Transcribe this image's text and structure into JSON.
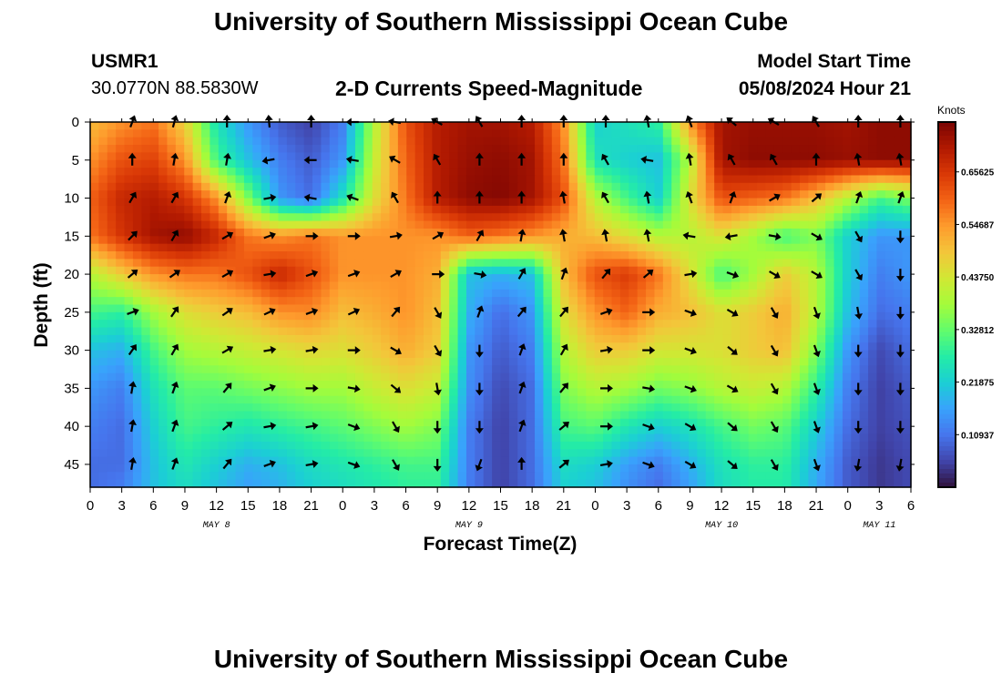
{
  "header": {
    "title": "University of Southern Mississippi Ocean Cube",
    "station": "USMR1",
    "coords": "30.0770N  88.5830W",
    "subtitle": "2-D Currents Speed-Magnitude",
    "model_label": "Model Start Time",
    "model_time": "05/08/2024 Hour 21"
  },
  "footer": {
    "title": "University of Southern Mississippi Ocean Cube"
  },
  "chart_data": {
    "type": "heatmap",
    "title": "2-D Currents Speed-Magnitude",
    "xlabel": "Forecast Time(Z)",
    "ylabel": "Depth (ft)",
    "x_ticks": [
      "0",
      "3",
      "6",
      "9",
      "12",
      "15",
      "18",
      "21",
      "0",
      "3",
      "6",
      "9",
      "12",
      "15",
      "18",
      "21",
      "0",
      "3",
      "6",
      "9",
      "12",
      "15",
      "18",
      "21",
      "0",
      "3",
      "6"
    ],
    "x_range_hours": [
      0,
      78
    ],
    "day_labels": [
      {
        "label": "MAY 8",
        "hour": 12
      },
      {
        "label": "MAY 9",
        "hour": 36
      },
      {
        "label": "MAY 10",
        "hour": 60
      },
      {
        "label": "MAY 11",
        "hour": 75
      }
    ],
    "y_ticks": [
      "0",
      "5",
      "10",
      "15",
      "20",
      "25",
      "30",
      "35",
      "40",
      "45"
    ],
    "y_range_ft": [
      0,
      48
    ],
    "colorbar": {
      "label": "Knots",
      "ticks": [
        "0.65625",
        "0.54687",
        "0.43750",
        "0.32812",
        "0.21875",
        "0.10937"
      ],
      "range": [
        0.0,
        0.76
      ],
      "colors": [
        "#30123b",
        "#4145ab",
        "#4675ed",
        "#39a2fc",
        "#1bcfd4",
        "#24eca6",
        "#61fc6c",
        "#a4fc3b",
        "#d1e834",
        "#f3c63a",
        "#fe9b2d",
        "#f36315",
        "#d93806",
        "#b11901",
        "#7a0403"
      ]
    },
    "speed_grid": {
      "units": "knots",
      "x_hours": [
        0,
        3,
        6,
        9,
        12,
        15,
        18,
        21,
        24,
        27,
        30,
        33,
        36,
        39,
        42,
        45,
        48,
        51,
        54,
        57,
        60,
        63,
        66,
        69,
        72,
        75,
        78
      ],
      "depths_ft": [
        0,
        5,
        10,
        15,
        20,
        25,
        30,
        35,
        40,
        45,
        48
      ],
      "values": [
        [
          0.5,
          0.55,
          0.58,
          0.47,
          0.25,
          0.15,
          0.08,
          0.05,
          0.12,
          0.4,
          0.62,
          0.7,
          0.72,
          0.72,
          0.7,
          0.55,
          0.22,
          0.25,
          0.28,
          0.55,
          0.72,
          0.73,
          0.73,
          0.73,
          0.72,
          0.74,
          0.74
        ],
        [
          0.55,
          0.62,
          0.64,
          0.55,
          0.3,
          0.2,
          0.12,
          0.08,
          0.15,
          0.42,
          0.6,
          0.7,
          0.73,
          0.74,
          0.72,
          0.58,
          0.25,
          0.22,
          0.2,
          0.4,
          0.72,
          0.74,
          0.74,
          0.74,
          0.73,
          0.74,
          0.74
        ],
        [
          0.6,
          0.68,
          0.7,
          0.66,
          0.55,
          0.35,
          0.15,
          0.1,
          0.25,
          0.45,
          0.58,
          0.7,
          0.74,
          0.75,
          0.72,
          0.62,
          0.4,
          0.3,
          0.22,
          0.45,
          0.62,
          0.6,
          0.58,
          0.5,
          0.4,
          0.3,
          0.35
        ],
        [
          0.58,
          0.66,
          0.72,
          0.74,
          0.68,
          0.58,
          0.55,
          0.58,
          0.55,
          0.55,
          0.55,
          0.55,
          0.6,
          0.58,
          0.55,
          0.52,
          0.5,
          0.45,
          0.4,
          0.4,
          0.45,
          0.38,
          0.3,
          0.35,
          0.22,
          0.15,
          0.15
        ],
        [
          0.4,
          0.48,
          0.55,
          0.58,
          0.58,
          0.62,
          0.68,
          0.62,
          0.55,
          0.55,
          0.55,
          0.52,
          0.2,
          0.18,
          0.2,
          0.5,
          0.62,
          0.65,
          0.58,
          0.45,
          0.3,
          0.38,
          0.48,
          0.4,
          0.22,
          0.12,
          0.15
        ],
        [
          0.3,
          0.28,
          0.38,
          0.45,
          0.48,
          0.5,
          0.55,
          0.56,
          0.5,
          0.52,
          0.55,
          0.5,
          0.18,
          0.1,
          0.15,
          0.45,
          0.55,
          0.6,
          0.52,
          0.5,
          0.45,
          0.48,
          0.52,
          0.4,
          0.2,
          0.1,
          0.12
        ],
        [
          0.2,
          0.18,
          0.3,
          0.38,
          0.4,
          0.42,
          0.44,
          0.46,
          0.45,
          0.48,
          0.52,
          0.48,
          0.15,
          0.08,
          0.12,
          0.4,
          0.48,
          0.48,
          0.44,
          0.44,
          0.45,
          0.48,
          0.5,
          0.35,
          0.15,
          0.06,
          0.1
        ],
        [
          0.15,
          0.12,
          0.25,
          0.32,
          0.32,
          0.34,
          0.36,
          0.38,
          0.38,
          0.42,
          0.45,
          0.42,
          0.14,
          0.06,
          0.1,
          0.35,
          0.4,
          0.38,
          0.34,
          0.36,
          0.4,
          0.42,
          0.4,
          0.28,
          0.12,
          0.05,
          0.08
        ],
        [
          0.12,
          0.1,
          0.22,
          0.3,
          0.28,
          0.26,
          0.28,
          0.3,
          0.32,
          0.35,
          0.38,
          0.35,
          0.12,
          0.05,
          0.1,
          0.3,
          0.32,
          0.26,
          0.22,
          0.25,
          0.3,
          0.34,
          0.32,
          0.22,
          0.1,
          0.05,
          0.07
        ],
        [
          0.1,
          0.1,
          0.2,
          0.26,
          0.22,
          0.18,
          0.2,
          0.24,
          0.26,
          0.28,
          0.3,
          0.3,
          0.12,
          0.05,
          0.1,
          0.24,
          0.22,
          0.16,
          0.12,
          0.18,
          0.25,
          0.28,
          0.28,
          0.18,
          0.08,
          0.04,
          0.06
        ],
        [
          0.1,
          0.12,
          0.2,
          0.24,
          0.2,
          0.16,
          0.18,
          0.22,
          0.24,
          0.26,
          0.28,
          0.28,
          0.12,
          0.05,
          0.1,
          0.22,
          0.2,
          0.14,
          0.1,
          0.16,
          0.24,
          0.27,
          0.27,
          0.17,
          0.08,
          0.04,
          0.06
        ]
      ]
    },
    "vectors": {
      "x_hours": [
        4,
        8,
        13,
        17,
        21,
        25,
        29,
        33,
        37,
        41,
        45,
        49,
        53,
        57,
        61,
        65,
        69,
        73,
        77
      ],
      "depths_ft": [
        0,
        5,
        10,
        15,
        20,
        25,
        30,
        35,
        40,
        45
      ],
      "angles_deg": [
        [
          200,
          195,
          180,
          175,
          180,
          90,
          100,
          120,
          150,
          180,
          180,
          180,
          170,
          160,
          130,
          120,
          150,
          180,
          180
        ],
        [
          180,
          190,
          190,
          80,
          90,
          100,
          120,
          150,
          180,
          180,
          180,
          150,
          100,
          170,
          150,
          150,
          180,
          170,
          170
        ],
        [
          210,
          210,
          200,
          260,
          100,
          110,
          150,
          180,
          180,
          180,
          170,
          150,
          170,
          160,
          200,
          240,
          230,
          200,
          200
        ],
        [
          225,
          210,
          240,
          250,
          270,
          270,
          260,
          240,
          210,
          190,
          170,
          170,
          170,
          100,
          80,
          280,
          300,
          330,
          0
        ],
        [
          230,
          235,
          240,
          260,
          250,
          250,
          240,
          270,
          280,
          210,
          200,
          220,
          230,
          260,
          290,
          300,
          300,
          330,
          0
        ],
        [
          250,
          215,
          235,
          245,
          250,
          245,
          220,
          330,
          200,
          220,
          220,
          250,
          270,
          290,
          300,
          330,
          340,
          350,
          0
        ],
        [
          215,
          210,
          240,
          260,
          260,
          270,
          300,
          330,
          0,
          200,
          210,
          260,
          270,
          290,
          310,
          330,
          340,
          0,
          0
        ],
        [
          190,
          200,
          220,
          250,
          270,
          280,
          310,
          350,
          0,
          200,
          220,
          270,
          280,
          290,
          300,
          330,
          340,
          0,
          0
        ],
        [
          190,
          200,
          230,
          260,
          260,
          290,
          330,
          0,
          0,
          200,
          230,
          270,
          290,
          300,
          310,
          330,
          340,
          0,
          0
        ],
        [
          190,
          200,
          220,
          250,
          260,
          290,
          330,
          0,
          20,
          180,
          230,
          260,
          290,
          300,
          310,
          330,
          340,
          10,
          10
        ]
      ]
    }
  }
}
